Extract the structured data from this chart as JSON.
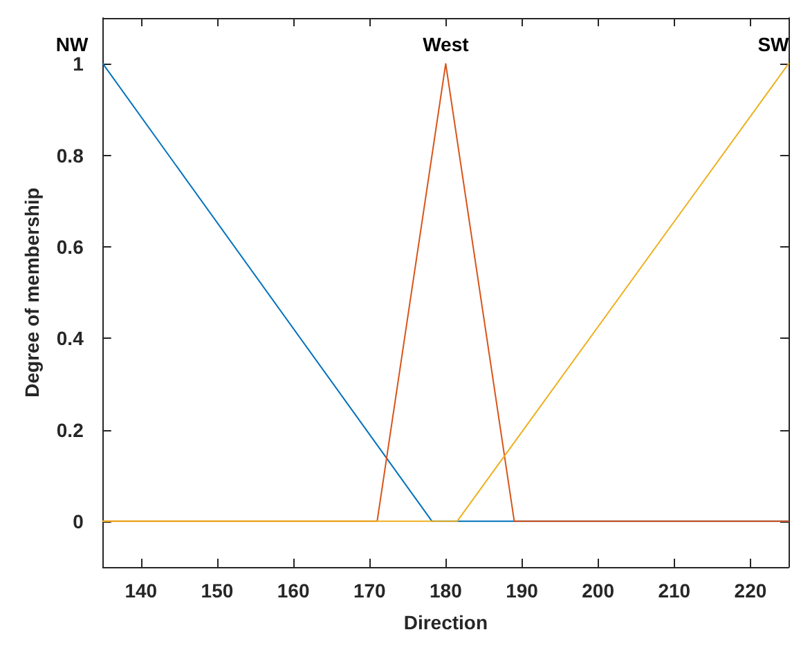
{
  "chart_data": {
    "type": "line",
    "xlabel": "Direction",
    "ylabel": "Degree of membership",
    "xlim": [
      135,
      225
    ],
    "xticks": [
      140,
      150,
      160,
      170,
      180,
      190,
      200,
      210,
      220
    ],
    "ylim": [
      -0.1,
      1.1
    ],
    "yticks": [
      0,
      0.2,
      0.4,
      0.6,
      0.8,
      1
    ],
    "grid": false,
    "marker": "none",
    "line_style": "solid",
    "series": [
      {
        "color": "#0072bd",
        "x": [
          135,
          178.2,
          225
        ],
        "values": [
          1,
          0,
          0
        ]
      },
      {
        "color": "#d95319",
        "x": [
          135,
          171,
          180,
          189,
          225
        ],
        "values": [
          0,
          0,
          1,
          0,
          0
        ]
      },
      {
        "color": "#edb120",
        "x": [
          135,
          181.5,
          225
        ],
        "values": [
          0,
          0,
          1
        ]
      }
    ],
    "annotations": [
      {
        "text": "NW",
        "x": 135,
        "y": 1
      },
      {
        "text": "West",
        "x": 180,
        "y": 1
      },
      {
        "text": "SW",
        "x": 225,
        "y": 1
      }
    ]
  }
}
